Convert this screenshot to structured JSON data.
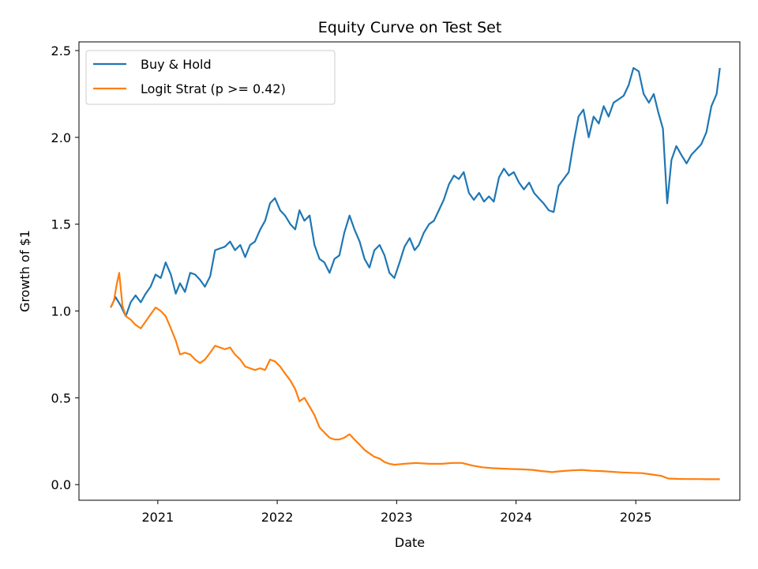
{
  "chart_data": {
    "type": "line",
    "title": "Equity Curve on Test Set",
    "xlabel": "Date",
    "ylabel": "Growth of $1",
    "xlim": [
      "2020-05-05",
      "2025-11-15"
    ],
    "ylim": [
      -0.09,
      2.55
    ],
    "x_ticks": [
      {
        "date": "2021-01-01",
        "label": "2021"
      },
      {
        "date": "2022-01-01",
        "label": "2022"
      },
      {
        "date": "2023-01-01",
        "label": "2023"
      },
      {
        "date": "2024-01-01",
        "label": "2024"
      },
      {
        "date": "2025-01-01",
        "label": "2025"
      }
    ],
    "y_ticks": [
      {
        "value": 0.0,
        "label": "0.0"
      },
      {
        "value": 0.5,
        "label": "0.5"
      },
      {
        "value": 1.0,
        "label": "1.0"
      },
      {
        "value": 1.5,
        "label": "1.5"
      },
      {
        "value": 2.0,
        "label": "2.0"
      },
      {
        "value": 2.5,
        "label": "2.5"
      }
    ],
    "grid": false,
    "legend_position": "upper-left",
    "series": [
      {
        "name": "Buy & Hold",
        "color": "#1f77b4",
        "points": [
          [
            "2020-08-10",
            1.02
          ],
          [
            "2020-08-25",
            1.08
          ],
          [
            "2020-09-10",
            1.03
          ],
          [
            "2020-09-25",
            0.97
          ],
          [
            "2020-10-10",
            1.05
          ],
          [
            "2020-10-25",
            1.09
          ],
          [
            "2020-11-10",
            1.05
          ],
          [
            "2020-11-25",
            1.1
          ],
          [
            "2020-12-10",
            1.14
          ],
          [
            "2020-12-25",
            1.21
          ],
          [
            "2021-01-10",
            1.19
          ],
          [
            "2021-01-25",
            1.28
          ],
          [
            "2021-02-10",
            1.21
          ],
          [
            "2021-02-25",
            1.1
          ],
          [
            "2021-03-10",
            1.16
          ],
          [
            "2021-03-25",
            1.11
          ],
          [
            "2021-04-10",
            1.22
          ],
          [
            "2021-04-25",
            1.21
          ],
          [
            "2021-05-10",
            1.18
          ],
          [
            "2021-05-25",
            1.14
          ],
          [
            "2021-06-10",
            1.2
          ],
          [
            "2021-06-25",
            1.35
          ],
          [
            "2021-07-10",
            1.36
          ],
          [
            "2021-07-25",
            1.37
          ],
          [
            "2021-08-10",
            1.4
          ],
          [
            "2021-08-25",
            1.35
          ],
          [
            "2021-09-10",
            1.38
          ],
          [
            "2021-09-25",
            1.31
          ],
          [
            "2021-10-10",
            1.38
          ],
          [
            "2021-10-25",
            1.4
          ],
          [
            "2021-11-10",
            1.47
          ],
          [
            "2021-11-25",
            1.52
          ],
          [
            "2021-12-10",
            1.62
          ],
          [
            "2021-12-25",
            1.65
          ],
          [
            "2022-01-10",
            1.58
          ],
          [
            "2022-01-25",
            1.55
          ],
          [
            "2022-02-10",
            1.5
          ],
          [
            "2022-02-25",
            1.47
          ],
          [
            "2022-03-10",
            1.58
          ],
          [
            "2022-03-25",
            1.52
          ],
          [
            "2022-04-10",
            1.55
          ],
          [
            "2022-04-25",
            1.38
          ],
          [
            "2022-05-10",
            1.3
          ],
          [
            "2022-05-25",
            1.28
          ],
          [
            "2022-06-10",
            1.22
          ],
          [
            "2022-06-25",
            1.3
          ],
          [
            "2022-07-10",
            1.32
          ],
          [
            "2022-07-25",
            1.45
          ],
          [
            "2022-08-10",
            1.55
          ],
          [
            "2022-08-25",
            1.47
          ],
          [
            "2022-09-10",
            1.4
          ],
          [
            "2022-09-25",
            1.3
          ],
          [
            "2022-10-10",
            1.25
          ],
          [
            "2022-10-25",
            1.35
          ],
          [
            "2022-11-10",
            1.38
          ],
          [
            "2022-11-25",
            1.32
          ],
          [
            "2022-12-10",
            1.22
          ],
          [
            "2022-12-25",
            1.19
          ],
          [
            "2023-01-10",
            1.28
          ],
          [
            "2023-01-25",
            1.37
          ],
          [
            "2023-02-10",
            1.42
          ],
          [
            "2023-02-25",
            1.35
          ],
          [
            "2023-03-10",
            1.38
          ],
          [
            "2023-03-25",
            1.45
          ],
          [
            "2023-04-10",
            1.5
          ],
          [
            "2023-04-25",
            1.52
          ],
          [
            "2023-05-10",
            1.58
          ],
          [
            "2023-05-25",
            1.64
          ],
          [
            "2023-06-10",
            1.73
          ],
          [
            "2023-06-25",
            1.78
          ],
          [
            "2023-07-10",
            1.76
          ],
          [
            "2023-07-25",
            1.8
          ],
          [
            "2023-08-10",
            1.68
          ],
          [
            "2023-08-25",
            1.64
          ],
          [
            "2023-09-10",
            1.68
          ],
          [
            "2023-09-25",
            1.63
          ],
          [
            "2023-10-10",
            1.66
          ],
          [
            "2023-10-25",
            1.63
          ],
          [
            "2023-11-10",
            1.77
          ],
          [
            "2023-11-25",
            1.82
          ],
          [
            "2023-12-10",
            1.78
          ],
          [
            "2023-12-25",
            1.8
          ],
          [
            "2024-01-10",
            1.74
          ],
          [
            "2024-01-25",
            1.7
          ],
          [
            "2024-02-10",
            1.74
          ],
          [
            "2024-02-25",
            1.68
          ],
          [
            "2024-03-10",
            1.65
          ],
          [
            "2024-03-25",
            1.62
          ],
          [
            "2024-04-10",
            1.58
          ],
          [
            "2024-04-25",
            1.57
          ],
          [
            "2024-05-10",
            1.72
          ],
          [
            "2024-05-25",
            1.76
          ],
          [
            "2024-06-10",
            1.8
          ],
          [
            "2024-06-25",
            1.97
          ],
          [
            "2024-07-10",
            2.12
          ],
          [
            "2024-07-25",
            2.16
          ],
          [
            "2024-08-10",
            2.0
          ],
          [
            "2024-08-25",
            2.12
          ],
          [
            "2024-09-10",
            2.08
          ],
          [
            "2024-09-25",
            2.18
          ],
          [
            "2024-10-10",
            2.12
          ],
          [
            "2024-10-25",
            2.2
          ],
          [
            "2024-11-10",
            2.22
          ],
          [
            "2024-11-25",
            2.24
          ],
          [
            "2024-12-10",
            2.3
          ],
          [
            "2024-12-25",
            2.4
          ],
          [
            "2025-01-10",
            2.38
          ],
          [
            "2025-01-25",
            2.25
          ],
          [
            "2025-02-10",
            2.2
          ],
          [
            "2025-02-25",
            2.25
          ],
          [
            "2025-03-10",
            2.15
          ],
          [
            "2025-03-25",
            2.05
          ],
          [
            "2025-04-07",
            1.62
          ],
          [
            "2025-04-20",
            1.87
          ],
          [
            "2025-05-05",
            1.95
          ],
          [
            "2025-05-20",
            1.9
          ],
          [
            "2025-06-05",
            1.85
          ],
          [
            "2025-06-20",
            1.9
          ],
          [
            "2025-07-05",
            1.93
          ],
          [
            "2025-07-20",
            1.96
          ],
          [
            "2025-08-05",
            2.03
          ],
          [
            "2025-08-20",
            2.18
          ],
          [
            "2025-09-05",
            2.25
          ],
          [
            "2025-09-15",
            2.4
          ]
        ]
      },
      {
        "name": "Logit Strat (p >= 0.42)",
        "color": "#ff7f0e",
        "points": [
          [
            "2020-08-10",
            1.02
          ],
          [
            "2020-08-20",
            1.06
          ],
          [
            "2020-08-28",
            1.15
          ],
          [
            "2020-09-05",
            1.22
          ],
          [
            "2020-09-15",
            1.03
          ],
          [
            "2020-09-25",
            0.97
          ],
          [
            "2020-10-10",
            0.95
          ],
          [
            "2020-10-25",
            0.92
          ],
          [
            "2020-11-10",
            0.9
          ],
          [
            "2020-11-25",
            0.94
          ],
          [
            "2020-12-10",
            0.98
          ],
          [
            "2020-12-25",
            1.02
          ],
          [
            "2021-01-10",
            1.0
          ],
          [
            "2021-01-25",
            0.97
          ],
          [
            "2021-02-10",
            0.9
          ],
          [
            "2021-02-25",
            0.83
          ],
          [
            "2021-03-10",
            0.75
          ],
          [
            "2021-03-25",
            0.76
          ],
          [
            "2021-04-10",
            0.75
          ],
          [
            "2021-04-25",
            0.72
          ],
          [
            "2021-05-10",
            0.7
          ],
          [
            "2021-05-25",
            0.72
          ],
          [
            "2021-06-10",
            0.76
          ],
          [
            "2021-06-25",
            0.8
          ],
          [
            "2021-07-10",
            0.79
          ],
          [
            "2021-07-25",
            0.78
          ],
          [
            "2021-08-10",
            0.79
          ],
          [
            "2021-08-25",
            0.75
          ],
          [
            "2021-09-10",
            0.72
          ],
          [
            "2021-09-25",
            0.68
          ],
          [
            "2021-10-10",
            0.67
          ],
          [
            "2021-10-25",
            0.66
          ],
          [
            "2021-11-10",
            0.67
          ],
          [
            "2021-11-25",
            0.66
          ],
          [
            "2021-12-10",
            0.72
          ],
          [
            "2021-12-25",
            0.71
          ],
          [
            "2022-01-10",
            0.68
          ],
          [
            "2022-01-25",
            0.64
          ],
          [
            "2022-02-10",
            0.6
          ],
          [
            "2022-02-25",
            0.55
          ],
          [
            "2022-03-10",
            0.48
          ],
          [
            "2022-03-25",
            0.5
          ],
          [
            "2022-04-10",
            0.45
          ],
          [
            "2022-04-25",
            0.4
          ],
          [
            "2022-05-10",
            0.33
          ],
          [
            "2022-05-25",
            0.3
          ],
          [
            "2022-06-10",
            0.27
          ],
          [
            "2022-06-25",
            0.26
          ],
          [
            "2022-07-10",
            0.26
          ],
          [
            "2022-07-25",
            0.27
          ],
          [
            "2022-08-10",
            0.29
          ],
          [
            "2022-08-25",
            0.26
          ],
          [
            "2022-09-10",
            0.23
          ],
          [
            "2022-09-25",
            0.2
          ],
          [
            "2022-10-10",
            0.18
          ],
          [
            "2022-10-25",
            0.16
          ],
          [
            "2022-11-10",
            0.15
          ],
          [
            "2022-11-25",
            0.13
          ],
          [
            "2022-12-10",
            0.12
          ],
          [
            "2022-12-25",
            0.115
          ],
          [
            "2023-01-25",
            0.12
          ],
          [
            "2023-03-01",
            0.125
          ],
          [
            "2023-04-10",
            0.12
          ],
          [
            "2023-05-20",
            0.12
          ],
          [
            "2023-06-20",
            0.125
          ],
          [
            "2023-07-20",
            0.125
          ],
          [
            "2023-08-20",
            0.11
          ],
          [
            "2023-09-20",
            0.1
          ],
          [
            "2023-10-20",
            0.095
          ],
          [
            "2023-11-20",
            0.092
          ],
          [
            "2023-12-20",
            0.09
          ],
          [
            "2024-01-20",
            0.088
          ],
          [
            "2024-02-20",
            0.085
          ],
          [
            "2024-03-20",
            0.078
          ],
          [
            "2024-04-20",
            0.072
          ],
          [
            "2024-05-20",
            0.078
          ],
          [
            "2024-06-20",
            0.082
          ],
          [
            "2024-07-20",
            0.085
          ],
          [
            "2024-08-20",
            0.08
          ],
          [
            "2024-09-20",
            0.078
          ],
          [
            "2024-10-20",
            0.074
          ],
          [
            "2024-11-20",
            0.07
          ],
          [
            "2024-12-20",
            0.068
          ],
          [
            "2025-01-20",
            0.066
          ],
          [
            "2025-02-20",
            0.058
          ],
          [
            "2025-03-20",
            0.05
          ],
          [
            "2025-04-10",
            0.035
          ],
          [
            "2025-05-10",
            0.033
          ],
          [
            "2025-06-10",
            0.032
          ],
          [
            "2025-07-10",
            0.032
          ],
          [
            "2025-08-10",
            0.031
          ],
          [
            "2025-09-15",
            0.031
          ]
        ]
      }
    ]
  }
}
